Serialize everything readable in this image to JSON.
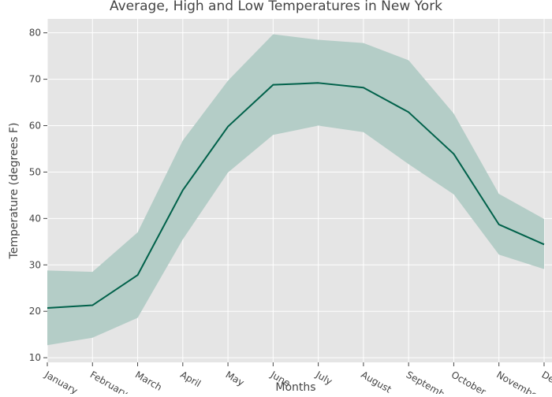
{
  "chart_data": {
    "type": "line",
    "title": "Average, High and Low Temperatures in New York",
    "xlabel": "Months",
    "ylabel": "Temperature (degrees F)",
    "categories": [
      "January",
      "February",
      "March",
      "April",
      "May",
      "June",
      "July",
      "August",
      "September",
      "October",
      "November",
      "December"
    ],
    "series": [
      {
        "values": [
          20.7,
          21.3,
          27.8,
          46.1,
          59.8,
          68.8,
          69.2,
          68.2,
          62.9,
          53.9,
          38.7,
          34.4
        ]
      }
    ],
    "band": {
      "upper": [
        28.8,
        28.5,
        37.0,
        56.8,
        69.7,
        79.7,
        78.5,
        77.8,
        74.1,
        62.6,
        45.3,
        39.9
      ],
      "lower": [
        12.7,
        14.3,
        18.6,
        35.5,
        49.9,
        58.0,
        60.0,
        58.6,
        51.7,
        45.2,
        32.2,
        29.1
      ]
    },
    "yticks": [
      10,
      20,
      30,
      40,
      50,
      60,
      70,
      80
    ],
    "ylim": [
      9,
      83
    ],
    "grid": true,
    "colors": {
      "line": "#00614a",
      "band": "#b4cdc7",
      "plot_bg": "#e5e5e5",
      "grid": "#ffffff"
    }
  }
}
